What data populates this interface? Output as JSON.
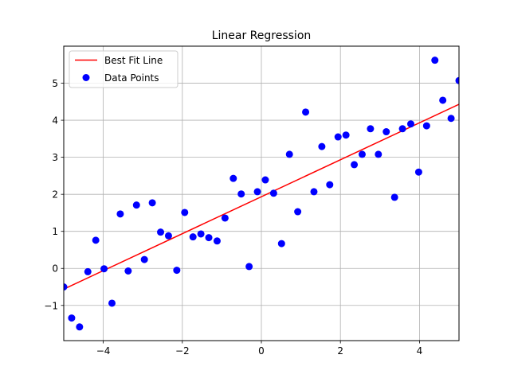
{
  "chart_data": {
    "type": "scatter",
    "title": "Linear Regression",
    "xlabel": "",
    "ylabel": "",
    "xlim": [
      -5,
      5
    ],
    "ylim": [
      -1.95,
      6.0
    ],
    "x_ticks": [
      -4,
      -2,
      0,
      2,
      4
    ],
    "x_tick_labels": [
      "−4",
      "−2",
      "0",
      "2",
      "4"
    ],
    "y_ticks": [
      -1,
      0,
      1,
      2,
      3,
      4,
      5
    ],
    "y_tick_labels": [
      "−1",
      "0",
      "1",
      "2",
      "3",
      "4",
      "5"
    ],
    "grid": true,
    "legend": {
      "placement": "upper-left",
      "entries": [
        "Best Fit Line",
        "Data Points"
      ]
    },
    "series": [
      {
        "name": "Data Points",
        "kind": "scatter",
        "color": "#0000ff",
        "points": [
          [
            -5.0,
            -0.5
          ],
          [
            -4.8,
            -1.34
          ],
          [
            -4.6,
            -1.58
          ],
          [
            -4.39,
            -0.09
          ],
          [
            -4.19,
            0.76
          ],
          [
            -3.98,
            -0.01
          ],
          [
            -3.78,
            -0.94
          ],
          [
            -3.57,
            1.47
          ],
          [
            -3.37,
            -0.07
          ],
          [
            -3.16,
            1.71
          ],
          [
            -2.96,
            0.24
          ],
          [
            -2.76,
            1.77
          ],
          [
            -2.55,
            0.98
          ],
          [
            -2.35,
            0.88
          ],
          [
            -2.14,
            -0.05
          ],
          [
            -1.94,
            1.51
          ],
          [
            -1.73,
            0.85
          ],
          [
            -1.53,
            0.93
          ],
          [
            -1.33,
            0.83
          ],
          [
            -1.12,
            0.74
          ],
          [
            -0.92,
            1.36
          ],
          [
            -0.71,
            2.43
          ],
          [
            -0.51,
            2.01
          ],
          [
            -0.31,
            0.05
          ],
          [
            -0.1,
            2.07
          ],
          [
            0.1,
            2.39
          ],
          [
            0.31,
            2.03
          ],
          [
            0.51,
            0.67
          ],
          [
            0.71,
            3.08
          ],
          [
            0.92,
            1.53
          ],
          [
            1.12,
            4.22
          ],
          [
            1.33,
            2.07
          ],
          [
            1.53,
            3.29
          ],
          [
            1.73,
            2.26
          ],
          [
            1.94,
            3.55
          ],
          [
            2.14,
            3.6
          ],
          [
            2.35,
            2.8
          ],
          [
            2.55,
            3.08
          ],
          [
            2.76,
            3.77
          ],
          [
            2.96,
            3.08
          ],
          [
            3.16,
            3.69
          ],
          [
            3.37,
            1.92
          ],
          [
            3.57,
            3.77
          ],
          [
            3.78,
            3.9
          ],
          [
            3.98,
            2.6
          ],
          [
            4.18,
            3.85
          ],
          [
            4.39,
            5.62
          ],
          [
            4.59,
            4.54
          ],
          [
            4.8,
            4.05
          ],
          [
            5.0,
            5.07
          ]
        ]
      },
      {
        "name": "Best Fit Line",
        "kind": "line",
        "color": "#ff0000",
        "x": [
          -5,
          5
        ],
        "y": [
          -0.56,
          4.43
        ]
      }
    ]
  }
}
